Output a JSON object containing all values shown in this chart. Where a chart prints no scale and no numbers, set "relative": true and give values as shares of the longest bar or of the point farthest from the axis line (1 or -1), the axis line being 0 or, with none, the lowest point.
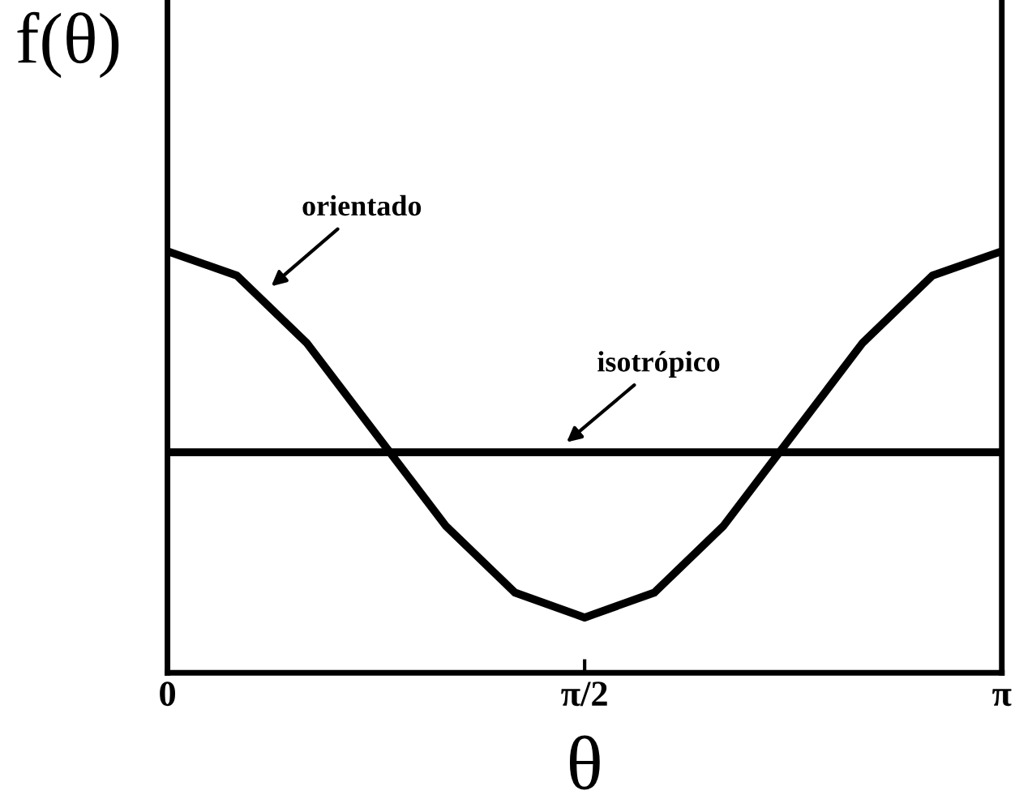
{
  "chart_data": {
    "type": "line",
    "relative": true,
    "xlabel": "θ",
    "ylabel": "f(θ)",
    "x": [
      0,
      0.2618,
      0.5236,
      0.7854,
      1.0472,
      1.309,
      1.5708,
      1.8326,
      2.0944,
      2.3562,
      2.618,
      2.8798,
      3.1416
    ],
    "xlim": [
      0,
      3.1416
    ],
    "xticks": [
      0,
      {
        "value": 1.5708,
        "label": "π/2"
      },
      {
        "value": 3.1416,
        "label": "π"
      }
    ],
    "series": [
      {
        "color": "#000000",
        "values": [
          1,
          0.942,
          0.783,
          0.566,
          0.349,
          0.19,
          0.131,
          0.19,
          0.349,
          0.566,
          0.783,
          0.942,
          1
        ]
      },
      {
        "color": "#000000",
        "values": [
          0.523,
          0.523,
          0.523,
          0.523,
          0.523,
          0.523,
          0.523,
          0.523,
          0.523,
          0.523,
          0.523,
          0.523,
          0.523
        ]
      }
    ],
    "annotations": [
      {
        "text": "orientado",
        "x": 0.378,
        "y": 0.91
      },
      {
        "text": "isotrópico",
        "x": 1.49,
        "y": 0.54
      }
    ],
    "grid": false,
    "legend": false,
    "marker": "none",
    "line_style": "solid"
  }
}
